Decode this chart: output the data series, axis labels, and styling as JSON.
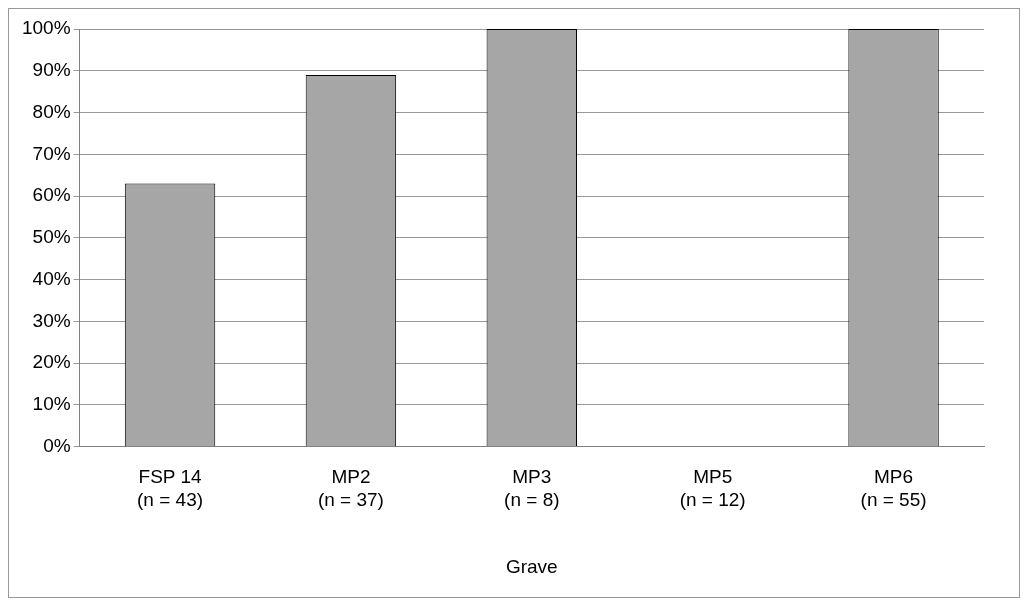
{
  "chart_data": {
    "type": "bar",
    "xlabel": "Grave",
    "categories": [
      "FSP 14\n(n = 43)",
      "MP2\n(n = 37)",
      "MP3\n(n = 8)",
      "MP5\n(n = 12)",
      "MP6\n(n = 55)"
    ],
    "values": [
      63,
      89,
      100,
      0,
      100
    ],
    "color": "#a6a6a6",
    "ylim": [
      0,
      100
    ],
    "yticks": [
      {
        "value": 0,
        "label": "0%"
      },
      {
        "value": 10,
        "label": "10%"
      },
      {
        "value": 20,
        "label": "20%"
      },
      {
        "value": 30,
        "label": "30%"
      },
      {
        "value": 40,
        "label": "40%"
      },
      {
        "value": 50,
        "label": "50%"
      },
      {
        "value": 60,
        "label": "60%"
      },
      {
        "value": 70,
        "label": "70%"
      },
      {
        "value": 80,
        "label": "80%"
      },
      {
        "value": 90,
        "label": "90%"
      },
      {
        "value": 100,
        "label": "100%"
      }
    ],
    "grid": "y",
    "legend": false
  }
}
